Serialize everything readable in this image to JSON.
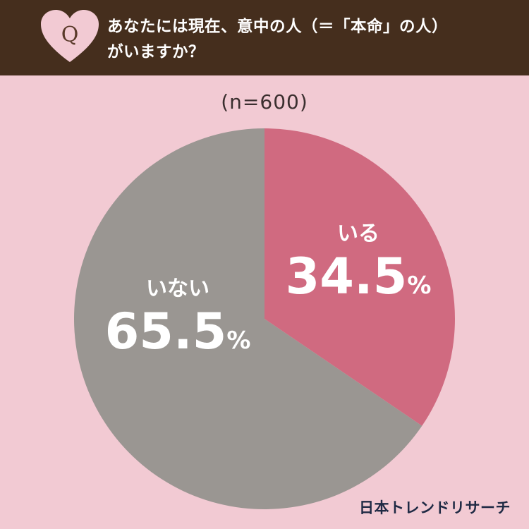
{
  "header": {
    "icon": "heart-q-icon",
    "q_letter": "Q",
    "question_line1": "あなたには現在、意中の人（＝「本命」の人）",
    "question_line2": "がいますか？"
  },
  "sample_label": "(n=600)",
  "chart_data": {
    "type": "pie",
    "title": "あなたには現在、意中の人（＝「本命」の人）がいますか？",
    "categories": [
      "いる",
      "いない"
    ],
    "values": [
      34.5,
      65.5
    ],
    "unit": "%",
    "colors": [
      "#d06a80",
      "#9a9692"
    ],
    "start": "top, clockwise"
  },
  "labels": {
    "iru_name": "いる",
    "iru_value": "34.5",
    "inai_name": "いない",
    "inai_value": "65.5",
    "unit": "%"
  },
  "brand": "日本トレンドリサーチ",
  "colors": {
    "header_bg": "#452e1d",
    "page_bg": "#f2cad3",
    "heart": "#f2cad3"
  }
}
